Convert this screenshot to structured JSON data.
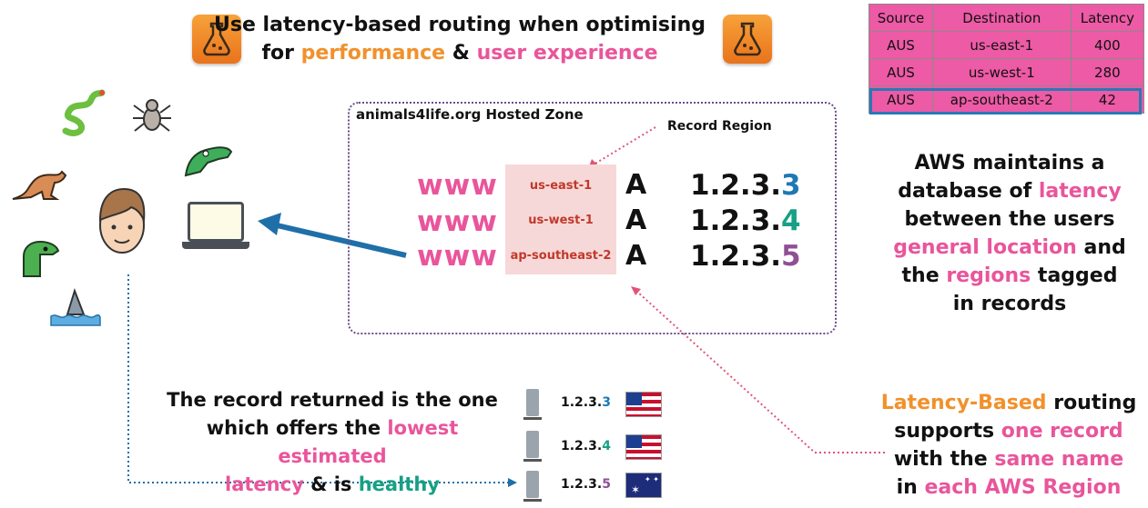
{
  "title": {
    "line1": "Use latency-based routing when optimising",
    "line2_prefix": "for",
    "line2_performance": "performance",
    "line2_amp": "&",
    "line2_ux": "user experience"
  },
  "latency_table": {
    "headers": [
      "Source",
      "Destination",
      "Latency"
    ],
    "rows": [
      [
        "AUS",
        "us-east-1",
        "400"
      ],
      [
        "AUS",
        "us-west-1",
        "280"
      ],
      [
        "AUS",
        "ap-southeast-2",
        "42"
      ]
    ]
  },
  "zone": {
    "title": "animals4life.org Hosted Zone",
    "record_region_label": "Record Region",
    "records": [
      {
        "name": "www",
        "region": "us-east-1",
        "type": "A",
        "ip_prefix": "1.2.3.",
        "ip_last": "3"
      },
      {
        "name": "www",
        "region": "us-west-1",
        "type": "A",
        "ip_prefix": "1.2.3.",
        "ip_last": "4"
      },
      {
        "name": "www",
        "region": "ap-southeast-2",
        "type": "A",
        "ip_prefix": "1.2.3.",
        "ip_last": "5"
      }
    ]
  },
  "aws_note": {
    "l1": "AWS maintains a",
    "l2_a": "database of",
    "l2_b": "latency",
    "l3": "between the users",
    "l4_a": "general location",
    "l4_b": "and",
    "l5_a": "the",
    "l5_b": "regions",
    "l5_c": "tagged",
    "l6": "in records"
  },
  "routing_note": {
    "l1_a": "Latency-Based",
    "l1_b": "routing",
    "l2_a": "supports",
    "l2_b": "one record",
    "l3_a": "with the",
    "l3_b": "same name",
    "l4_a": "in",
    "l4_b": "each AWS Region"
  },
  "bottom_note": {
    "l1": "The record returned is the one",
    "l2_a": "which offers the",
    "l2_b": "lowest estimated",
    "l3_a": "latency",
    "l3_b": "& is",
    "l3_c": "healthy"
  },
  "servers": [
    {
      "ip_prefix": "1.2.3.",
      "ip_last": "3",
      "flag": "us-flag-icon"
    },
    {
      "ip_prefix": "1.2.3.",
      "ip_last": "4",
      "flag": "us-flag-icon"
    },
    {
      "ip_prefix": "1.2.3.",
      "ip_last": "5",
      "flag": "australia-flag-icon"
    }
  ],
  "colors": {
    "pink": "#e9559b",
    "orange": "#f1912c",
    "blue": "#1f78b4",
    "green": "#16a085",
    "purple": "#8e4f96",
    "table_pink": "#ed5aa5"
  }
}
